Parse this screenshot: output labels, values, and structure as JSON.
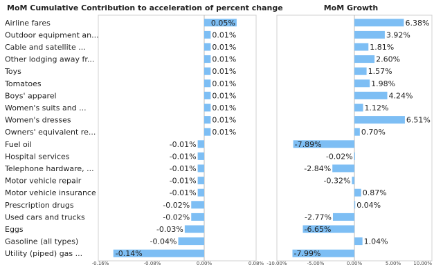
{
  "chart_data": [
    {
      "type": "bar",
      "orientation": "horizontal",
      "title": "MoM Cumulative Contribution to acceleration of percent change",
      "categories": [
        "Airline fares",
        "Outdoor equipment an...",
        "Cable and satellite ...",
        "Other lodging away fr...",
        "Toys",
        "Tomatoes",
        "Boys' apparel",
        "Women's suits and ...",
        "Women's dresses",
        "Owners' equivalent re...",
        "Fuel oil",
        "Hospital services",
        "Telephone hardware, ...",
        "Motor vehicle repair",
        "Motor vehicle insurance",
        "Prescription drugs",
        "Used cars and trucks",
        "Eggs",
        "Gasoline (all types)",
        "Utility (piped) gas ..."
      ],
      "values": [
        0.05,
        0.01,
        0.01,
        0.01,
        0.01,
        0.01,
        0.01,
        0.01,
        0.01,
        0.01,
        -0.01,
        -0.01,
        -0.01,
        -0.01,
        -0.01,
        -0.02,
        -0.02,
        -0.03,
        -0.04,
        -0.14
      ],
      "labels": [
        "0.05%",
        "0.01%",
        "0.01%",
        "0.01%",
        "0.01%",
        "0.01%",
        "0.01%",
        "0.01%",
        "0.01%",
        "0.01%",
        "-0.01%",
        "-0.01%",
        "-0.01%",
        "-0.01%",
        "-0.01%",
        "-0.02%",
        "-0.02%",
        "-0.03%",
        "-0.04%",
        "-0.14%"
      ],
      "xlim": [
        -0.16,
        0.08
      ],
      "ticks": [
        -0.16,
        -0.08,
        0.0,
        0.08
      ],
      "tick_labels": [
        "-0.16%",
        "-0.08%",
        "0.00%",
        "0.08%"
      ],
      "bar_color": "#7dbef4"
    },
    {
      "type": "bar",
      "orientation": "horizontal",
      "title": "MoM Growth",
      "categories": [
        "Airline fares",
        "Outdoor equipment an...",
        "Cable and satellite ...",
        "Other lodging away fr...",
        "Toys",
        "Tomatoes",
        "Boys' apparel",
        "Women's suits and ...",
        "Women's dresses",
        "Owners' equivalent re...",
        "Fuel oil",
        "Hospital services",
        "Telephone hardware, ...",
        "Motor vehicle repair",
        "Motor vehicle insurance",
        "Prescription drugs",
        "Used cars and trucks",
        "Eggs",
        "Gasoline (all types)",
        "Utility (piped) gas ..."
      ],
      "values": [
        6.38,
        3.92,
        1.81,
        2.6,
        1.57,
        1.98,
        4.24,
        1.12,
        6.51,
        0.7,
        -7.89,
        -0.02,
        -2.84,
        -0.32,
        0.87,
        0.04,
        -2.77,
        -6.65,
        1.04,
        -7.99
      ],
      "labels": [
        "6.38%",
        "3.92%",
        "1.81%",
        "2.60%",
        "1.57%",
        "1.98%",
        "4.24%",
        "1.12%",
        "6.51%",
        "0.70%",
        "-7.89%",
        "-0.02%",
        "-2.84%",
        "-0.32%",
        "0.87%",
        "0.04%",
        "-2.77%",
        "-6.65%",
        "1.04%",
        "-7.99%"
      ],
      "xlim": [
        -10.0,
        10.0
      ],
      "ticks": [
        -10.0,
        -5.0,
        0.0,
        5.0,
        10.0
      ],
      "tick_labels": [
        "-10.00%",
        "-5.00%",
        "0.00%",
        "5.00%",
        "10.00%"
      ],
      "bar_color": "#7dbef4"
    }
  ]
}
